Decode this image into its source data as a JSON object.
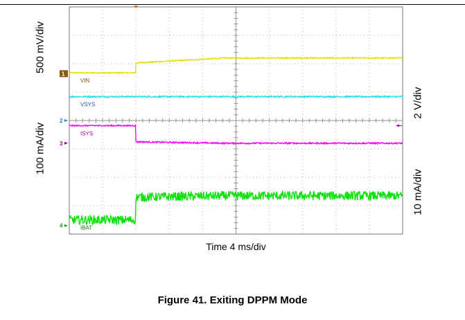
{
  "chart_data": {
    "type": "line",
    "title": "",
    "xlabel": "Time 4 ms/div",
    "x_range_divisions": [
      0,
      10
    ],
    "y_range_divisions": [
      0,
      8
    ],
    "grid": true,
    "scale_labels": {
      "left_top": "500 mV/div",
      "left_bottom": "100 mA/div",
      "right_top": "2 V/div",
      "right_bottom": "10 mA/div"
    },
    "channels": [
      {
        "id": "1",
        "name": "VIN",
        "color": "#e0e000",
        "label_color": "#8a5a10",
        "marker_color": "#8a5a10",
        "marker_level": 5.65,
        "before": 5.68,
        "after": 6.03,
        "settle": 6.2,
        "step_time": 2.0,
        "noise": 0.02,
        "noise_before": 0.02
      },
      {
        "id": "2",
        "name": "VSYS",
        "color": "#20e0f0",
        "label_color": "#2050a0",
        "marker_color": "#2080e0",
        "marker_level": 4.0,
        "before": 4.84,
        "after": 4.84,
        "settle": 4.84,
        "step_time": 2.0,
        "noise": 0.025,
        "noise_before": 0.025
      },
      {
        "id": "3",
        "name": "ISYS",
        "color": "#ff00ff",
        "label_color": "#a000a0",
        "marker_color": "#a000a0",
        "marker_level": 3.2,
        "before": 3.82,
        "after": 3.25,
        "settle": 3.2,
        "step_time": 2.0,
        "noise": 0.025,
        "noise_before": 0.02
      },
      {
        "id": "4",
        "name": "IBAT",
        "color": "#10e010",
        "label_color": "#107010",
        "marker_color": "#10a010",
        "marker_level": 0.3,
        "before": 0.5,
        "after": 1.3,
        "settle": 1.35,
        "step_time": 2.0,
        "noise": 0.16,
        "noise_before": 0.16
      }
    ]
  },
  "caption": "Figure 41. Exiting DPPM Mode"
}
